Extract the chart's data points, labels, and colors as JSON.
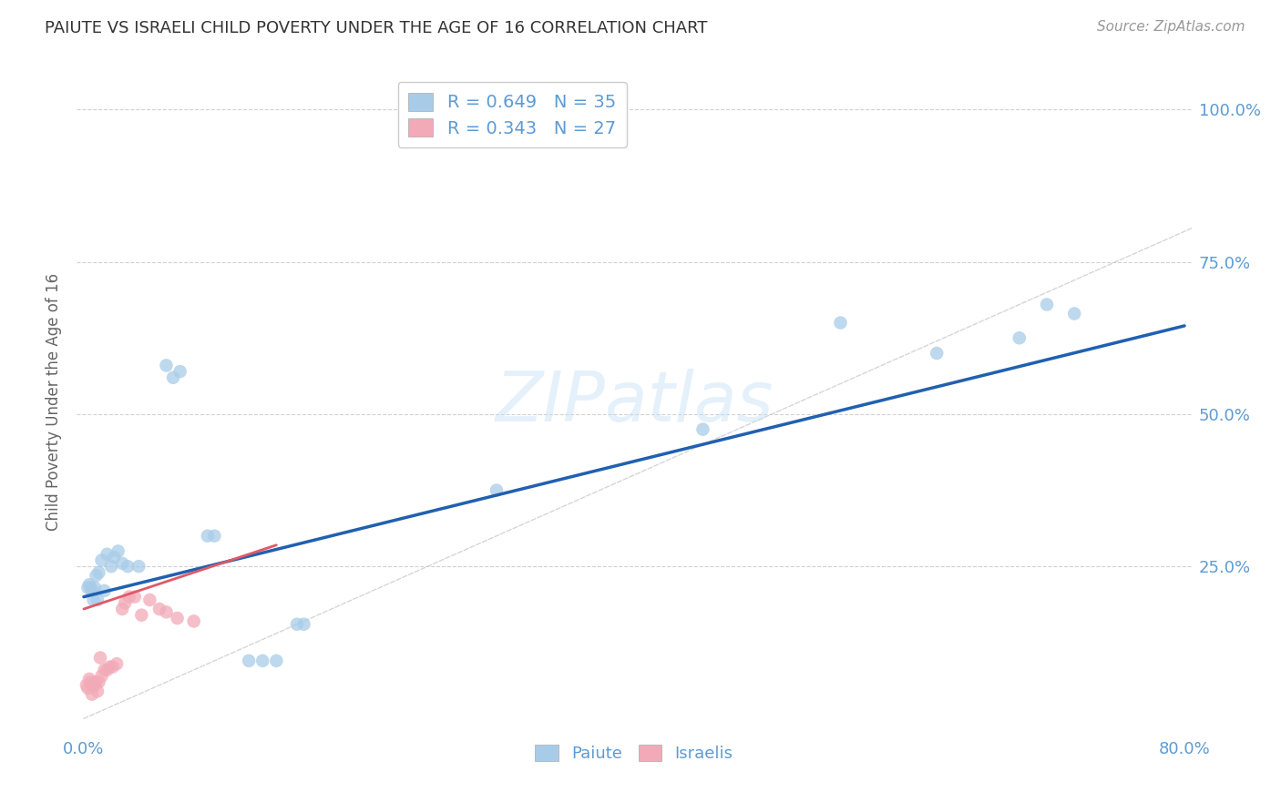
{
  "title": "PAIUTE VS ISRAELI CHILD POVERTY UNDER THE AGE OF 16 CORRELATION CHART",
  "source": "Source: ZipAtlas.com",
  "ylabel": "Child Poverty Under the Age of 16",
  "xlim": [
    -0.005,
    0.805
  ],
  "ylim": [
    -0.02,
    1.06
  ],
  "paiute_R": "0.649",
  "paiute_N": "35",
  "israelis_R": "0.343",
  "israelis_N": "27",
  "paiute_color": "#a8cce8",
  "israelis_color": "#f2aab8",
  "line_paiute_color": "#2060b0",
  "line_israelis_color": "#e05868",
  "diagonal_color": "#cccccc",
  "grid_color": "#cccccc",
  "text_color": "#5b9bd5",
  "watermark": "ZIPatlas",
  "background_color": "#ffffff",
  "paiute_x": [
    0.003,
    0.004,
    0.005,
    0.006,
    0.007,
    0.008,
    0.009,
    0.01,
    0.011,
    0.013,
    0.015,
    0.017,
    0.02,
    0.022,
    0.025,
    0.028,
    0.032,
    0.04,
    0.06,
    0.065,
    0.07,
    0.09,
    0.095,
    0.12,
    0.13,
    0.14,
    0.155,
    0.16,
    0.3,
    0.45,
    0.55,
    0.62,
    0.68,
    0.7,
    0.72
  ],
  "paiute_y": [
    0.215,
    0.22,
    0.215,
    0.21,
    0.195,
    0.215,
    0.235,
    0.195,
    0.24,
    0.26,
    0.21,
    0.27,
    0.25,
    0.265,
    0.275,
    0.255,
    0.25,
    0.25,
    0.58,
    0.56,
    0.57,
    0.3,
    0.3,
    0.095,
    0.095,
    0.095,
    0.155,
    0.155,
    0.375,
    0.475,
    0.65,
    0.6,
    0.625,
    0.68,
    0.665
  ],
  "israelis_x": [
    0.002,
    0.003,
    0.004,
    0.005,
    0.006,
    0.007,
    0.008,
    0.009,
    0.01,
    0.011,
    0.012,
    0.013,
    0.015,
    0.017,
    0.019,
    0.021,
    0.024,
    0.028,
    0.03,
    0.033,
    0.037,
    0.042,
    0.048,
    0.055,
    0.06,
    0.068,
    0.08
  ],
  "israelis_y": [
    0.055,
    0.05,
    0.065,
    0.06,
    0.04,
    0.055,
    0.055,
    0.06,
    0.045,
    0.06,
    0.1,
    0.07,
    0.08,
    0.08,
    0.085,
    0.085,
    0.09,
    0.18,
    0.19,
    0.2,
    0.2,
    0.17,
    0.195,
    0.18,
    0.175,
    0.165,
    0.16
  ],
  "paiute_line_x0": 0.0,
  "paiute_line_y0": 0.2,
  "paiute_line_x1": 0.8,
  "paiute_line_y1": 0.645,
  "israelis_line_x0": 0.0,
  "israelis_line_y0": 0.18,
  "israelis_line_x1": 0.14,
  "israelis_line_y1": 0.285
}
